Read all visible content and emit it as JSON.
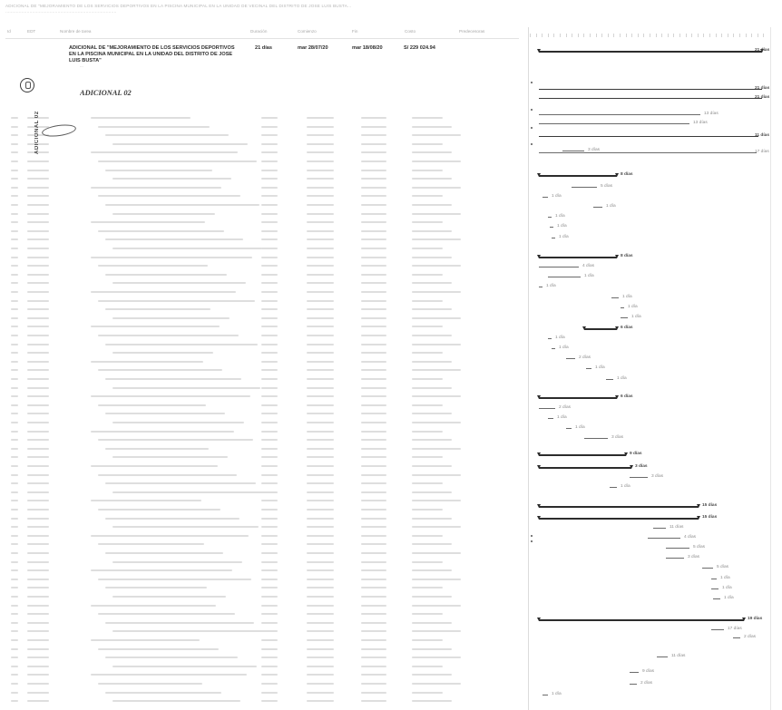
{
  "document": {
    "title": "ADICIONAL DE \"MEJORAMIENTO DE LOS SERVICIOS DEPORTIVOS EN LA PISCINA MUNICIPAL EN LA UNIDAD DE VECINAL DEL DISTRITO DE JOSE LUIS BUSTA...",
    "subtitle": "...................................................................................",
    "columns": [
      "Id",
      "EDT",
      "Nombre de tarea",
      "Duración",
      "Comienzo",
      "Fin",
      "Costo",
      "Predecesoras"
    ]
  },
  "tasks": [
    {
      "name": "ADICIONAL DE \"MEJORAMIENTO DE LOS SERVICIOS DEPORTIVOS EN LA PISCINA MUNICIPAL EN LA UNIDAD DEL DISTRITO DE JOSE LUIS BUSTA\"",
      "duration": "21 días",
      "start": "mar 28/07/20",
      "end": "mar 18/08/20",
      "cost": "S/ 229 024.94",
      "style": "strong"
    },
    {
      "name": "...",
      "duration": "",
      "start": "",
      "end": "",
      "cost": "",
      "style": "plain"
    },
    {
      "name": "ADICIONAL 02",
      "duration": "",
      "start": "",
      "end": "",
      "cost": "",
      "style": "bold"
    },
    {
      "name": "",
      "duration": "",
      "start": "",
      "end": "",
      "cost": "",
      "style": "plain"
    },
    {
      "name": "",
      "duration": "",
      "start": "",
      "end": "",
      "cost": "",
      "style": "plain"
    }
  ],
  "stamp": {
    "caption": "ADICIONAL 02"
  },
  "gantt": {
    "labels": [
      "21 días",
      "21 días",
      "21 días",
      "13 días",
      "13 días",
      "11 días",
      "17 días",
      "3 días",
      "8 días",
      "5 días",
      "1 día",
      "1 día",
      "1 día",
      "1 día",
      "1 día",
      "8 días",
      "4 días",
      "1 día",
      "1 día",
      "1 día",
      "1 día",
      "1 día",
      "6 días",
      "1 día",
      "1 día",
      "2 días",
      "1 día",
      "1 día",
      "6 días",
      "2 días",
      "1 día",
      "1 día",
      "3 días",
      "9 días",
      "3 días",
      "3 días",
      "1 día",
      "15 días",
      "15 días",
      "11 días",
      "4 días",
      "5 días",
      "3 días",
      "5 días",
      "1 día",
      "1 día",
      "1 día",
      "19 días",
      "17 días",
      "2 días",
      "11 días",
      "9 días",
      "2 días",
      "1 día"
    ]
  }
}
